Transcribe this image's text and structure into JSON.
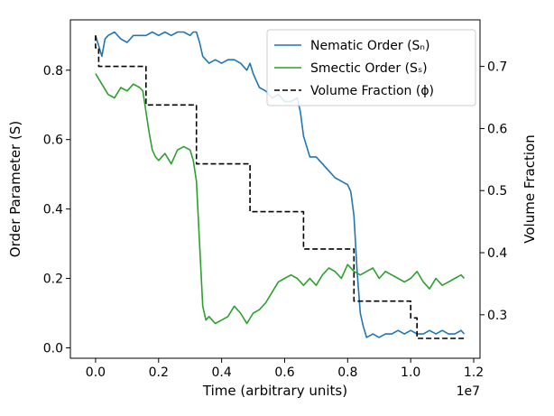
{
  "chart_data": {
    "type": "line",
    "xlabel": "Time (arbitrary units)",
    "x_offset_text": "1e7",
    "ylabel_left": "Order Parameter (S)",
    "ylabel_right": "Volume Fraction",
    "xlim": [
      -0.08,
      1.22
    ],
    "ylim_left": [
      -0.03,
      0.945
    ],
    "ylim_right": [
      0.23,
      0.775
    ],
    "x_ticks": [
      0.0,
      0.2,
      0.4,
      0.6,
      0.8,
      1.0,
      1.2
    ],
    "x_tick_labels": [
      "0.0",
      "0.2",
      "0.4",
      "0.6",
      "0.8",
      "1.0",
      "1.2"
    ],
    "y_left_ticks": [
      0.0,
      0.2,
      0.4,
      0.6,
      0.8
    ],
    "y_left_tick_labels": [
      "0.0",
      "0.2",
      "0.4",
      "0.6",
      "0.8"
    ],
    "y_right_ticks": [
      0.3,
      0.4,
      0.5,
      0.6,
      0.7
    ],
    "y_right_tick_labels": [
      "0.3",
      "0.4",
      "0.5",
      "0.6",
      "0.7"
    ],
    "legend_position": "top-right",
    "series": [
      {
        "name": "Nematic Order (Sₙ)",
        "axis": "left",
        "color": "#1f77b4",
        "style": "solid",
        "x": [
          0.0,
          0.01,
          0.02,
          0.03,
          0.04,
          0.06,
          0.08,
          0.1,
          0.12,
          0.14,
          0.16,
          0.18,
          0.2,
          0.22,
          0.24,
          0.26,
          0.28,
          0.3,
          0.31,
          0.32,
          0.33,
          0.34,
          0.36,
          0.38,
          0.4,
          0.42,
          0.44,
          0.46,
          0.48,
          0.49,
          0.5,
          0.51,
          0.52,
          0.54,
          0.56,
          0.58,
          0.6,
          0.62,
          0.64,
          0.65,
          0.66,
          0.67,
          0.68,
          0.7,
          0.72,
          0.74,
          0.76,
          0.78,
          0.8,
          0.81,
          0.82,
          0.83,
          0.84,
          0.85,
          0.86,
          0.88,
          0.9,
          0.92,
          0.94,
          0.96,
          0.98,
          1.0,
          1.02,
          1.04,
          1.06,
          1.08,
          1.1,
          1.12,
          1.14,
          1.16,
          1.17
        ],
        "values": [
          0.9,
          0.87,
          0.84,
          0.89,
          0.9,
          0.91,
          0.89,
          0.88,
          0.9,
          0.9,
          0.9,
          0.91,
          0.9,
          0.91,
          0.9,
          0.91,
          0.91,
          0.9,
          0.91,
          0.91,
          0.88,
          0.84,
          0.82,
          0.83,
          0.82,
          0.83,
          0.83,
          0.82,
          0.8,
          0.82,
          0.79,
          0.77,
          0.75,
          0.74,
          0.72,
          0.73,
          0.71,
          0.71,
          0.72,
          0.68,
          0.61,
          0.58,
          0.55,
          0.55,
          0.53,
          0.51,
          0.49,
          0.48,
          0.47,
          0.45,
          0.38,
          0.22,
          0.1,
          0.06,
          0.03,
          0.04,
          0.03,
          0.04,
          0.04,
          0.05,
          0.04,
          0.05,
          0.04,
          0.04,
          0.05,
          0.04,
          0.05,
          0.04,
          0.04,
          0.05,
          0.04
        ]
      },
      {
        "name": "Smectic Order (Sₛ)",
        "axis": "left",
        "color": "#2ca02c",
        "style": "solid",
        "x": [
          0.0,
          0.02,
          0.04,
          0.06,
          0.08,
          0.1,
          0.12,
          0.14,
          0.15,
          0.16,
          0.17,
          0.18,
          0.19,
          0.2,
          0.22,
          0.24,
          0.26,
          0.28,
          0.3,
          0.31,
          0.32,
          0.33,
          0.34,
          0.35,
          0.36,
          0.38,
          0.4,
          0.42,
          0.44,
          0.46,
          0.48,
          0.5,
          0.52,
          0.54,
          0.56,
          0.58,
          0.6,
          0.62,
          0.64,
          0.66,
          0.68,
          0.7,
          0.72,
          0.74,
          0.76,
          0.78,
          0.8,
          0.82,
          0.84,
          0.86,
          0.88,
          0.9,
          0.92,
          0.94,
          0.96,
          0.98,
          1.0,
          1.02,
          1.04,
          1.06,
          1.08,
          1.1,
          1.12,
          1.14,
          1.16,
          1.17
        ],
        "values": [
          0.79,
          0.76,
          0.73,
          0.72,
          0.75,
          0.74,
          0.76,
          0.75,
          0.74,
          0.68,
          0.62,
          0.57,
          0.55,
          0.54,
          0.56,
          0.53,
          0.57,
          0.58,
          0.57,
          0.54,
          0.48,
          0.3,
          0.12,
          0.08,
          0.09,
          0.07,
          0.08,
          0.09,
          0.12,
          0.1,
          0.07,
          0.1,
          0.11,
          0.13,
          0.16,
          0.19,
          0.2,
          0.21,
          0.2,
          0.18,
          0.2,
          0.18,
          0.21,
          0.23,
          0.22,
          0.2,
          0.24,
          0.22,
          0.21,
          0.22,
          0.23,
          0.2,
          0.22,
          0.21,
          0.2,
          0.19,
          0.2,
          0.22,
          0.19,
          0.17,
          0.2,
          0.18,
          0.19,
          0.2,
          0.21,
          0.2
        ]
      },
      {
        "name": "Volume Fraction (ϕ)",
        "axis": "right",
        "color": "#000000",
        "style": "dashed",
        "x": [
          0.0,
          0.0,
          0.01,
          0.01,
          0.16,
          0.16,
          0.32,
          0.32,
          0.49,
          0.49,
          0.66,
          0.66,
          0.82,
          0.82,
          1.0,
          1.0,
          1.02,
          1.02,
          1.17
        ],
        "values": [
          0.75,
          0.73,
          0.73,
          0.7,
          0.7,
          0.638,
          0.638,
          0.543,
          0.543,
          0.466,
          0.466,
          0.406,
          0.406,
          0.322,
          0.322,
          0.295,
          0.295,
          0.262,
          0.262
        ]
      }
    ]
  }
}
